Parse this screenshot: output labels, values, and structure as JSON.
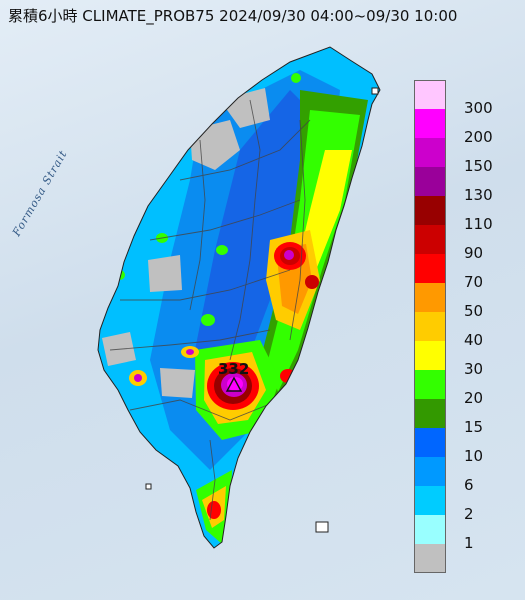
{
  "title": "累積6小時 CLIMATE_PROB75 2024/09/30 04:00~09/30 10:00",
  "strait_label": "Formosa Strait",
  "peak_value": "332",
  "legend": [
    {
      "label": "300",
      "color": "#ffc6ff"
    },
    {
      "label": "200",
      "color": "#ff00ff"
    },
    {
      "label": "150",
      "color": "#cc00cc"
    },
    {
      "label": "130",
      "color": "#9a009a"
    },
    {
      "label": "110",
      "color": "#980000"
    },
    {
      "label": "90",
      "color": "#cc0000"
    },
    {
      "label": "70",
      "color": "#ff0000"
    },
    {
      "label": "50",
      "color": "#ff9900"
    },
    {
      "label": "40",
      "color": "#ffcc00"
    },
    {
      "label": "30",
      "color": "#ffff00"
    },
    {
      "label": "20",
      "color": "#33ff00"
    },
    {
      "label": "15",
      "color": "#339900"
    },
    {
      "label": "10",
      "color": "#0066ff"
    },
    {
      "label": "6",
      "color": "#0099ff"
    },
    {
      "label": "2",
      "color": "#00ccff"
    },
    {
      "label": "1",
      "color": "#99ffff"
    },
    {
      "label": "",
      "color": "#c0c0c0"
    }
  ]
}
